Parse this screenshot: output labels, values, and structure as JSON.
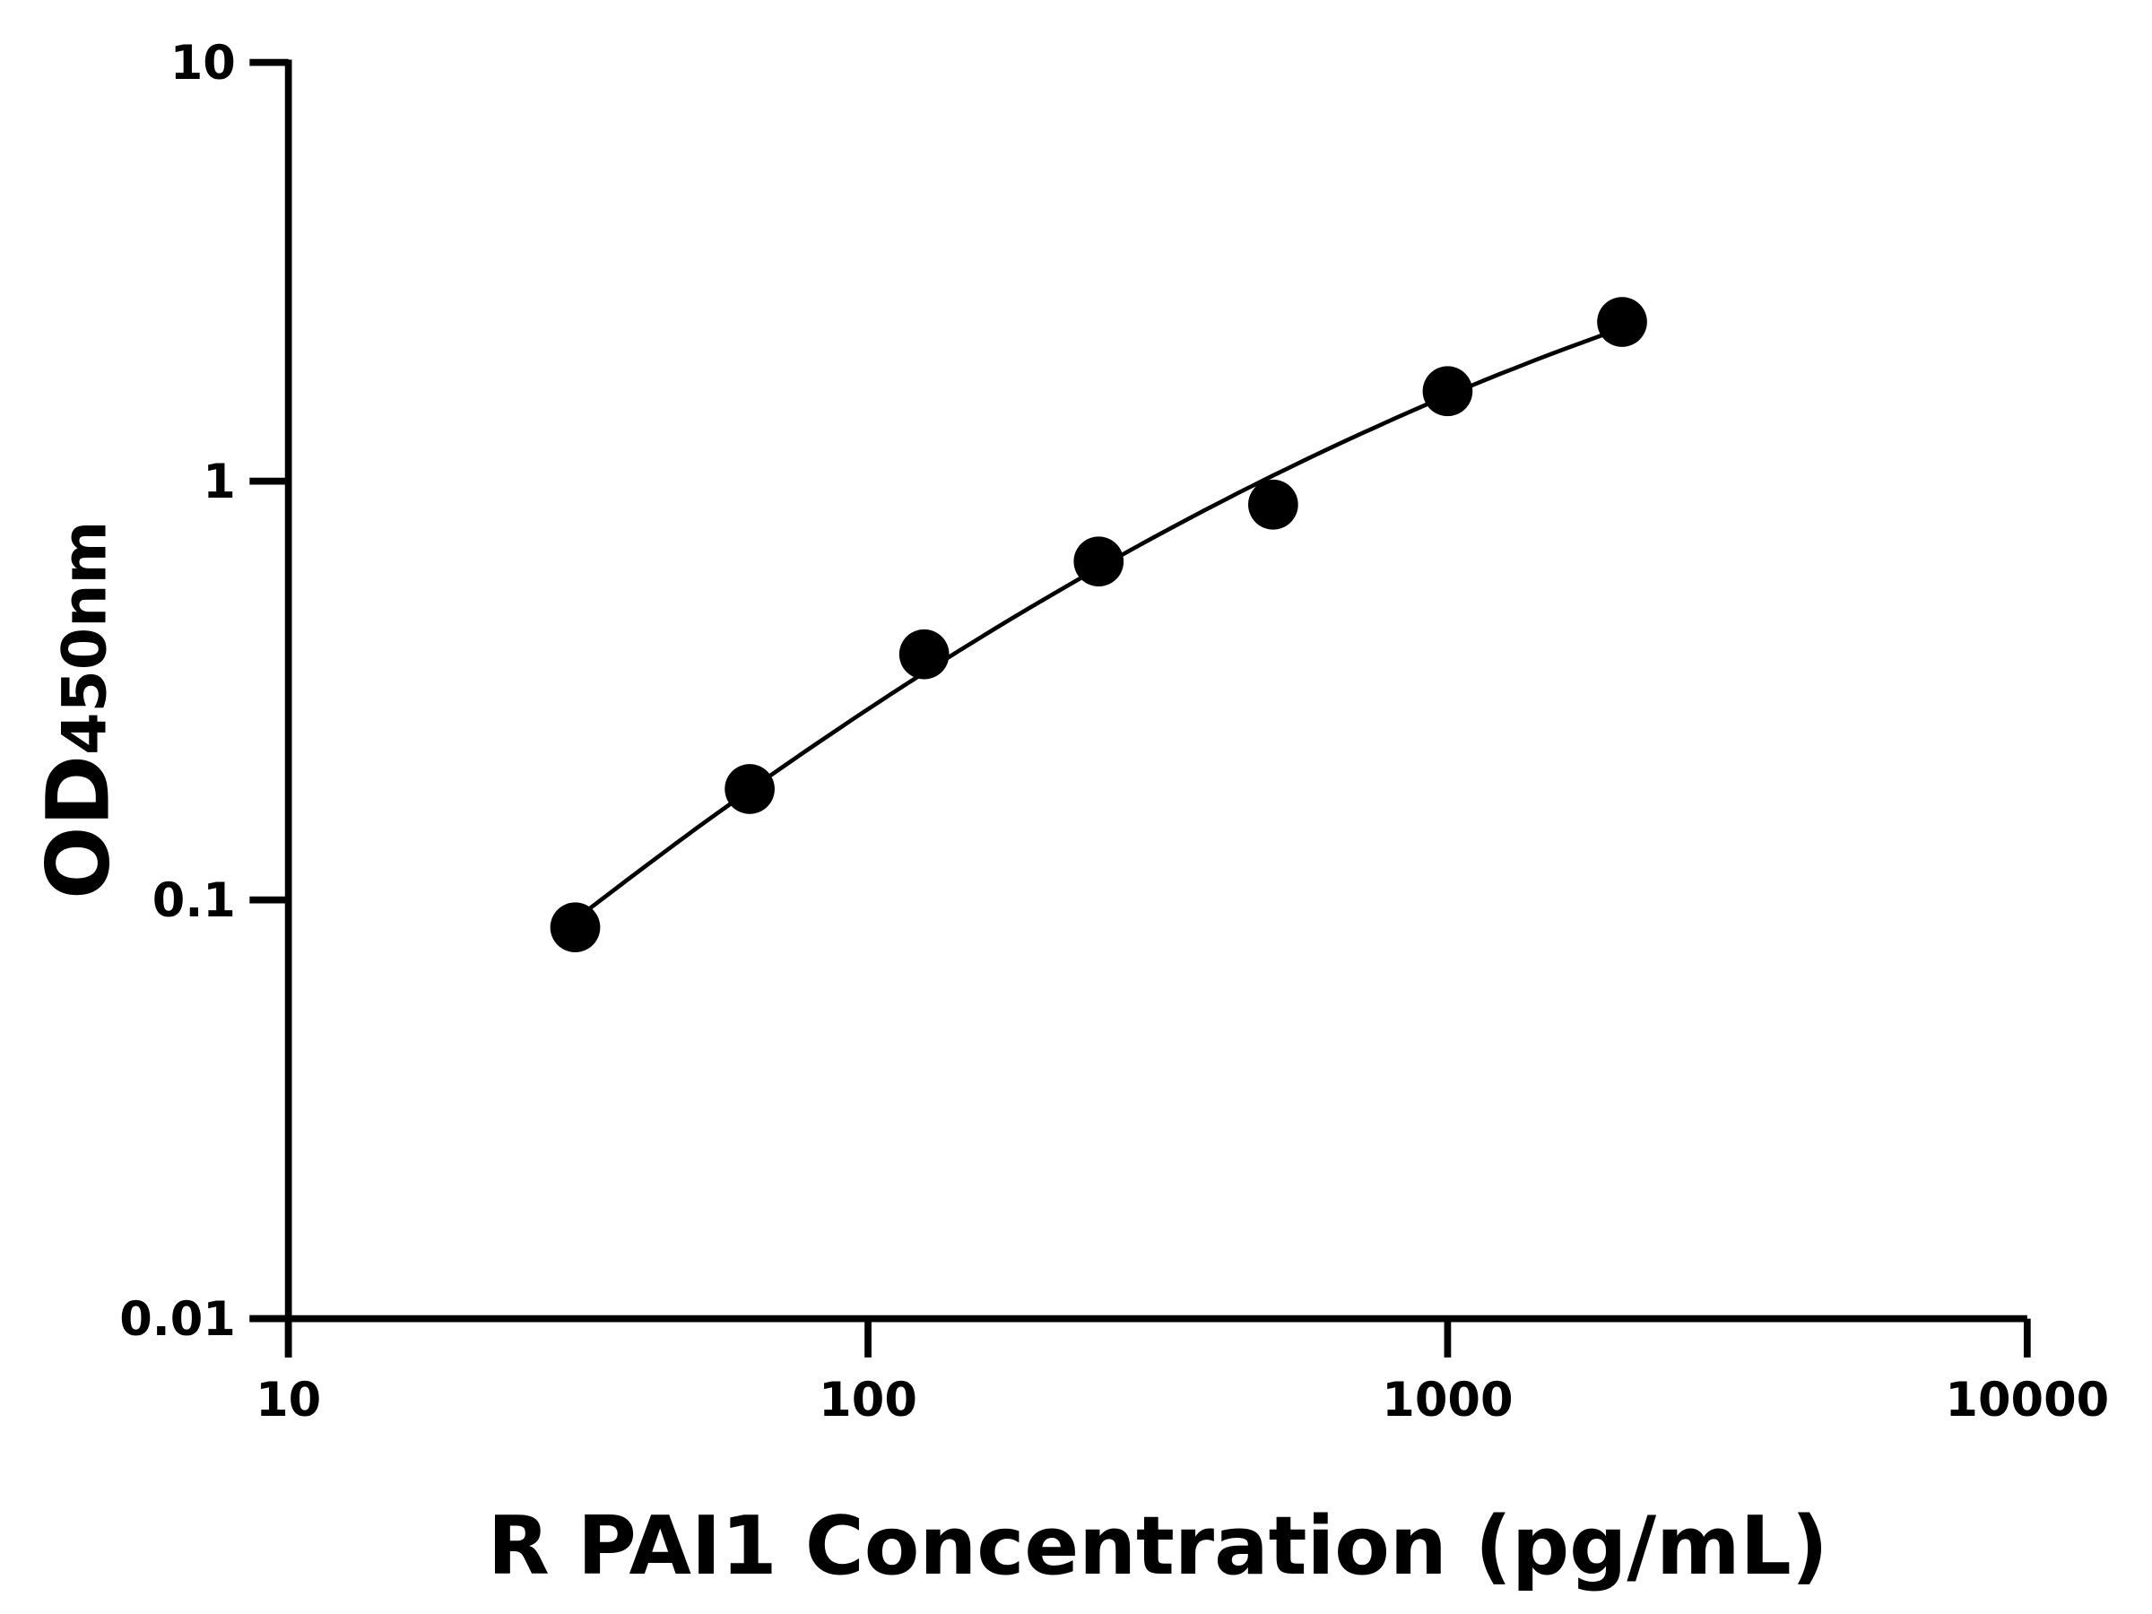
{
  "chart_data": {
    "type": "scatter",
    "xlabel": "R PAI1 Concentration (pg/mL)",
    "ylabel": "OD",
    "ylabel_subscript": "450nm",
    "xscale": "log",
    "yscale": "log",
    "xlim": [
      10,
      10000
    ],
    "ylim": [
      0.01,
      10
    ],
    "xticks": [
      "10",
      "100",
      "1000",
      "10000"
    ],
    "yticks": [
      "0.01",
      "0.1",
      "1",
      "10"
    ],
    "grid": false,
    "legend": "none",
    "fit_line": true,
    "marker_color": "#000000",
    "series": [
      {
        "x": [
          31.25,
          62.5,
          125,
          250,
          500,
          1000,
          2000
        ],
        "y": [
          0.086,
          0.184,
          0.386,
          0.643,
          0.879,
          1.64,
          2.4
        ]
      }
    ]
  }
}
